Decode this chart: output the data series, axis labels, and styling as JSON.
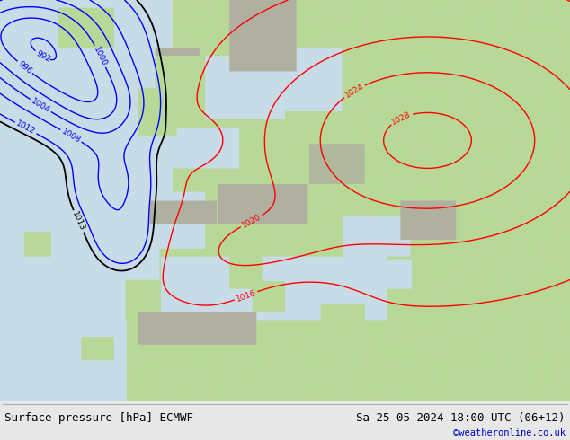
{
  "title_left": "Surface pressure [hPa] ECMWF",
  "title_right": "Sa 25-05-2024 18:00 UTC (06+12)",
  "credit": "©weatheronline.co.uk",
  "bg_color": "#e8e8e8",
  "ocean_color": "#c8dce8",
  "land_color": "#b8d898",
  "mountain_color": "#b0b0a0",
  "footer_bg": "#e8e8e8",
  "credit_color": "#0000cc",
  "text_color": "#000000",
  "label_fontsize": 9
}
